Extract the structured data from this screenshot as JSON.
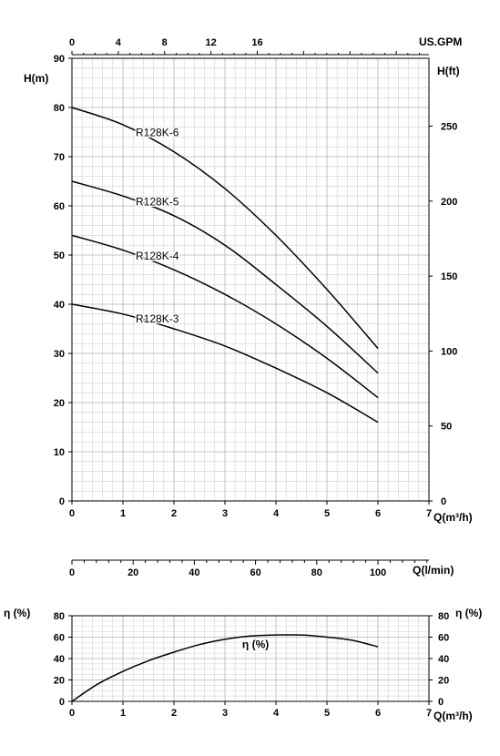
{
  "chart_data": [
    {
      "type": "line",
      "title": "",
      "x_label": "Q(m³/h)",
      "y_label": "H(m)",
      "x_ticks": [
        0,
        1,
        2,
        3,
        4,
        5,
        6,
        7
      ],
      "y_ticks": [
        0,
        10,
        20,
        30,
        40,
        50,
        60,
        70,
        80,
        90
      ],
      "xlim": [
        0,
        7
      ],
      "ylim": [
        0,
        90
      ],
      "grid": true,
      "top_axis": {
        "label": "US.GPM",
        "ticks": [
          0,
          4,
          8,
          12,
          16
        ]
      },
      "right_axis": {
        "label": "H(ft)",
        "ticks": [
          0,
          50,
          100,
          150,
          200,
          250
        ]
      },
      "series": [
        {
          "name": "R128K-6",
          "x": [
            0,
            1,
            2,
            3,
            4,
            5,
            6
          ],
          "y": [
            80,
            76.5,
            71,
            63.5,
            54,
            43,
            31
          ]
        },
        {
          "name": "R128K-5",
          "x": [
            0,
            1,
            2,
            3,
            4,
            5,
            6
          ],
          "y": [
            65,
            62,
            58,
            52,
            44,
            35.5,
            26
          ]
        },
        {
          "name": "R128K-4",
          "x": [
            0,
            1,
            2,
            3,
            4,
            5,
            6
          ],
          "y": [
            54,
            51,
            47,
            42,
            36,
            29,
            21
          ]
        },
        {
          "name": "R128K-3",
          "x": [
            0,
            1,
            2,
            3,
            4,
            5,
            6
          ],
          "y": [
            40,
            38,
            35,
            31.5,
            27,
            22,
            16
          ]
        }
      ]
    },
    {
      "type": "axis",
      "x_label": "Q(l/min)",
      "x_ticks": [
        0,
        20,
        40,
        60,
        80,
        100
      ]
    },
    {
      "type": "line",
      "title": "",
      "x_label": "Q(m³/h)",
      "y_label": "η (%)",
      "x_ticks": [
        0,
        1,
        2,
        3,
        4,
        5,
        6,
        7
      ],
      "y_ticks": [
        0,
        20,
        40,
        60,
        80
      ],
      "xlim": [
        0,
        7
      ],
      "ylim": [
        0,
        80
      ],
      "grid": true,
      "right_axis": {
        "label": "η (%)",
        "ticks": [
          0,
          20,
          40,
          60,
          80
        ]
      },
      "series": [
        {
          "name": "η (%)",
          "x": [
            0,
            0.5,
            1,
            1.5,
            2,
            2.5,
            3,
            3.5,
            4,
            4.5,
            5,
            5.5,
            6
          ],
          "y": [
            0,
            16,
            28,
            38,
            46,
            53,
            58,
            61,
            62,
            62,
            60,
            57,
            51
          ]
        }
      ]
    }
  ]
}
